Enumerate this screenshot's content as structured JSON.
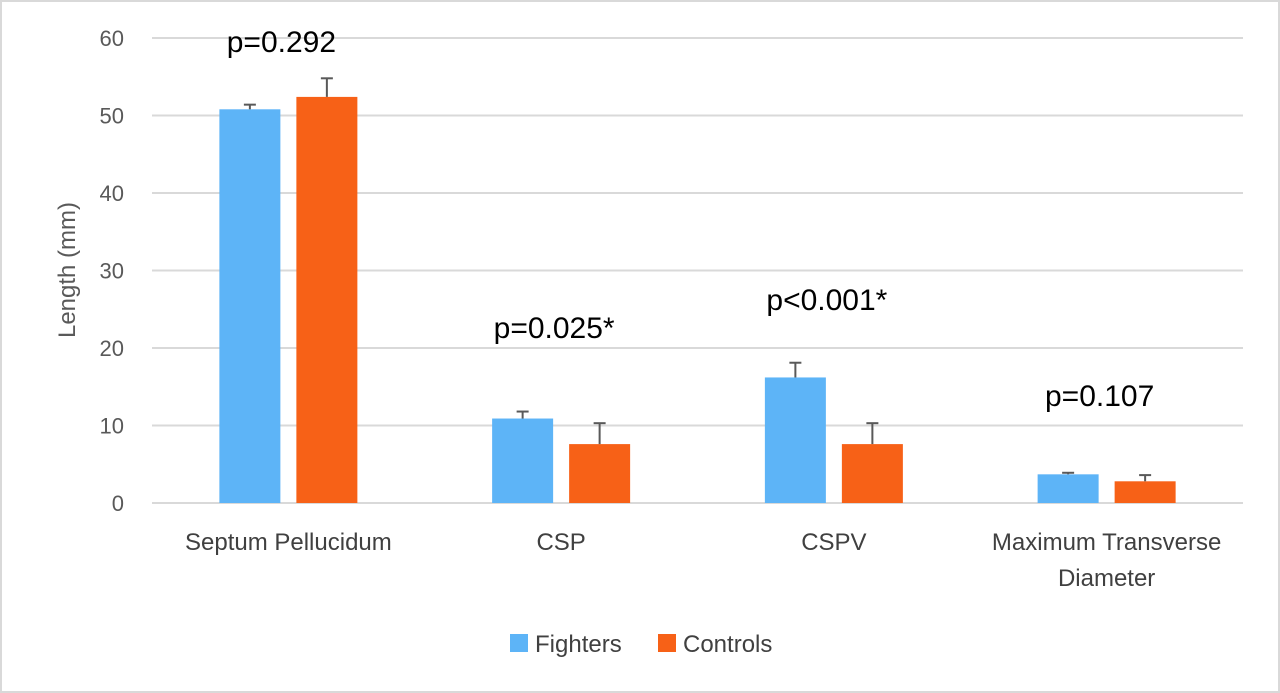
{
  "chart_data": {
    "type": "bar",
    "title": "",
    "xlabel": "",
    "ylabel": "Length (mm)",
    "ylim": [
      0,
      60
    ],
    "yticks": [
      0,
      10,
      20,
      30,
      40,
      50,
      60
    ],
    "grid": true,
    "legend_position": "bottom",
    "categories": [
      [
        "Septum Pellucidum"
      ],
      [
        "CSP"
      ],
      [
        "CSPV"
      ],
      [
        "Maximum Transverse",
        "Diameter"
      ]
    ],
    "series": [
      {
        "name": "Fighters",
        "color": "#5DB4F7",
        "values": [
          50.8,
          10.9,
          16.2,
          3.7
        ],
        "error": [
          0.6,
          0.9,
          1.9,
          0.2
        ]
      },
      {
        "name": "Controls",
        "color": "#F76117",
        "values": [
          52.4,
          7.6,
          7.6,
          2.8
        ],
        "error": [
          2.4,
          2.7,
          2.7,
          0.8
        ]
      }
    ],
    "annotations": [
      "p=0.292",
      "p=0.025*",
      "p<0.001*",
      "p=0.107"
    ]
  }
}
